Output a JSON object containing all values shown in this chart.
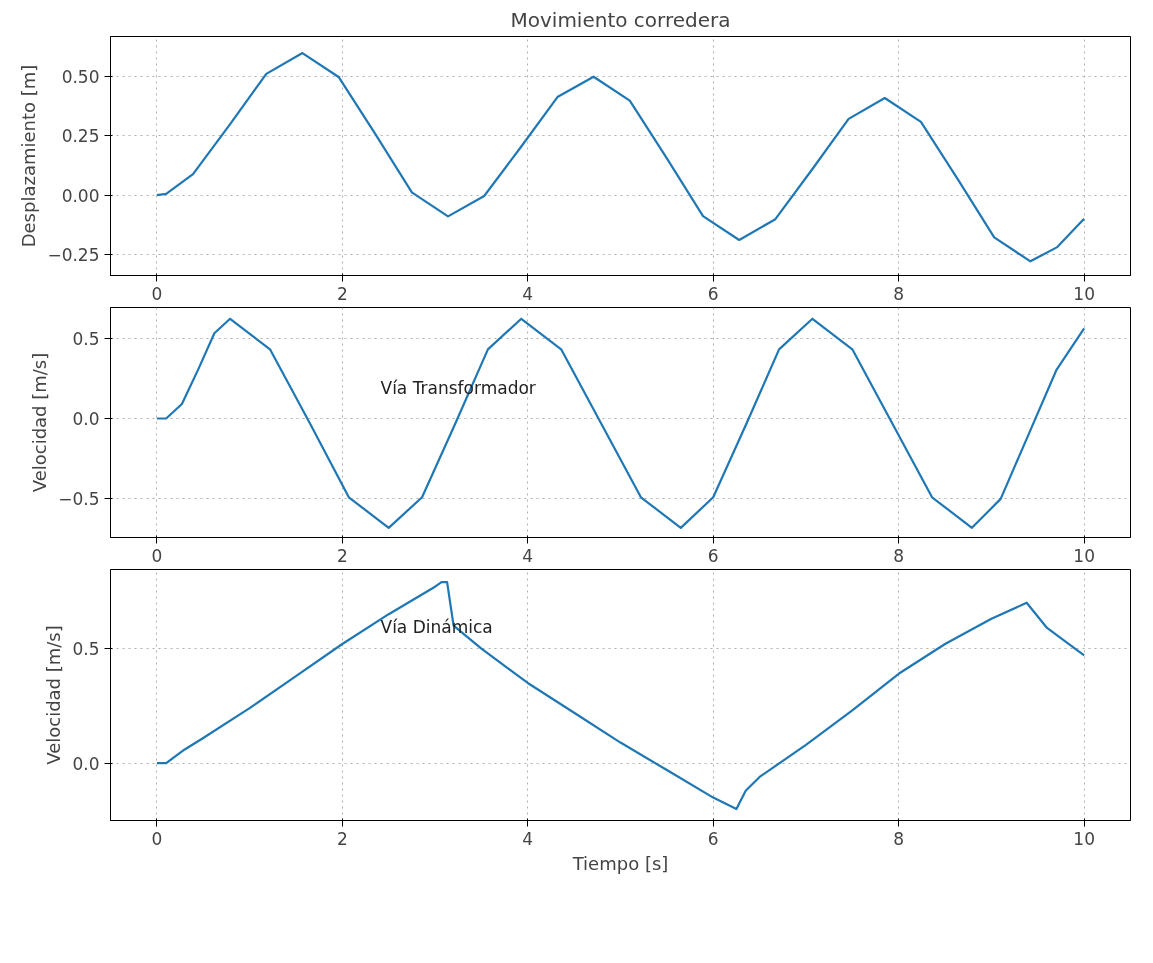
{
  "chart_data": [
    {
      "type": "line",
      "title": "Movimiento corredera",
      "ylabel": "Desplazamiento [m]",
      "grid": true,
      "line_style": "solid",
      "x": [
        0,
        0.1,
        0.39,
        0.79,
        1.18,
        1.57,
        1.96,
        2.36,
        2.75,
        3.14,
        3.53,
        3.93,
        4.32,
        4.71,
        5.1,
        5.5,
        5.89,
        6.28,
        6.67,
        7.07,
        7.46,
        7.85,
        8.24,
        8.64,
        9.03,
        9.42,
        9.71,
        10
      ],
      "series": [
        {
          "color": "#1f77b4",
          "values": [
            0,
            0.005,
            0.088,
            0.3,
            0.512,
            0.6,
            0.499,
            0.255,
            0.011,
            -0.09,
            -0.004,
            0.205,
            0.414,
            0.5,
            0.399,
            0.155,
            -0.089,
            -0.19,
            -0.102,
            0.11,
            0.322,
            0.41,
            0.309,
            0.065,
            -0.179,
            -0.28,
            -0.22,
            -0.1
          ]
        }
      ],
      "xlim": [
        -0.5,
        10.5
      ],
      "xticks": [
        0,
        2,
        4,
        6,
        8,
        10
      ],
      "ylim": [
        -0.34,
        0.67
      ],
      "yticks": [
        {
          "value": -0.25,
          "label": "−0.25"
        },
        {
          "value": 0,
          "label": "0.00"
        },
        {
          "value": 0.25,
          "label": "0.25"
        },
        {
          "value": 0.5,
          "label": "0.50"
        }
      ]
    },
    {
      "type": "line",
      "ylabel": "Velocidad [m/s]",
      "grid": true,
      "line_style": "solid",
      "annotations": [
        "Vía Transformador"
      ],
      "x": [
        0,
        0.1,
        0.27,
        0.45,
        0.62,
        0.79,
        1.22,
        1.65,
        2.07,
        2.5,
        2.86,
        3.22,
        3.57,
        3.93,
        4.36,
        4.79,
        5.22,
        5.65,
        6.0,
        6.36,
        6.71,
        7.07,
        7.5,
        7.93,
        8.36,
        8.79,
        9.1,
        9.4,
        9.7,
        10
      ],
      "series": [
        {
          "color": "#1f77b4",
          "values": [
            0,
            0,
            0.09,
            0.31,
            0.53,
            0.62,
            0.43,
            -0.03,
            -0.49,
            -0.68,
            -0.49,
            -0.03,
            0.43,
            0.62,
            0.43,
            -0.03,
            -0.49,
            -0.68,
            -0.49,
            -0.03,
            0.43,
            0.62,
            0.43,
            -0.03,
            -0.49,
            -0.68,
            -0.5,
            -0.1,
            0.3,
            0.56
          ]
        }
      ],
      "xlim": [
        -0.5,
        10.5
      ],
      "xticks": [
        0,
        2,
        4,
        6,
        8,
        10
      ],
      "ylim": [
        -0.74,
        0.69
      ],
      "yticks": [
        {
          "value": -0.5,
          "label": "−0.5"
        },
        {
          "value": 0,
          "label": "0.0"
        },
        {
          "value": 0.5,
          "label": "0.5"
        }
      ]
    },
    {
      "type": "line",
      "ylabel": "Velocidad [m/s]",
      "xlabel": "Tiempo [s]",
      "grid": true,
      "line_style": "solid",
      "annotations": [
        "Vía Dinámica"
      ],
      "x": [
        0,
        0.1,
        0.3,
        0.5,
        1,
        1.5,
        2,
        2.5,
        3,
        3.07,
        3.13,
        3.2,
        3.5,
        4,
        4.5,
        5,
        5.5,
        6,
        6.25,
        6.35,
        6.5,
        7,
        7.5,
        8,
        8.5,
        9,
        9.38,
        9.6,
        10
      ],
      "series": [
        {
          "color": "#1f77b4",
          "values": [
            0,
            0,
            0.06,
            0.11,
            0.24,
            0.38,
            0.52,
            0.65,
            0.77,
            0.79,
            0.79,
            0.6,
            0.5,
            0.35,
            0.22,
            0.09,
            -0.03,
            -0.15,
            -0.2,
            -0.12,
            -0.06,
            0.08,
            0.23,
            0.39,
            0.52,
            0.63,
            0.7,
            0.59,
            0.47
          ]
        }
      ],
      "xlim": [
        -0.5,
        10.5
      ],
      "xticks": [
        0,
        2,
        4,
        6,
        8,
        10
      ],
      "ylim": [
        -0.25,
        0.845
      ],
      "yticks": [
        {
          "value": 0,
          "label": "0.0"
        },
        {
          "value": 0.5,
          "label": "0.5"
        }
      ]
    }
  ]
}
